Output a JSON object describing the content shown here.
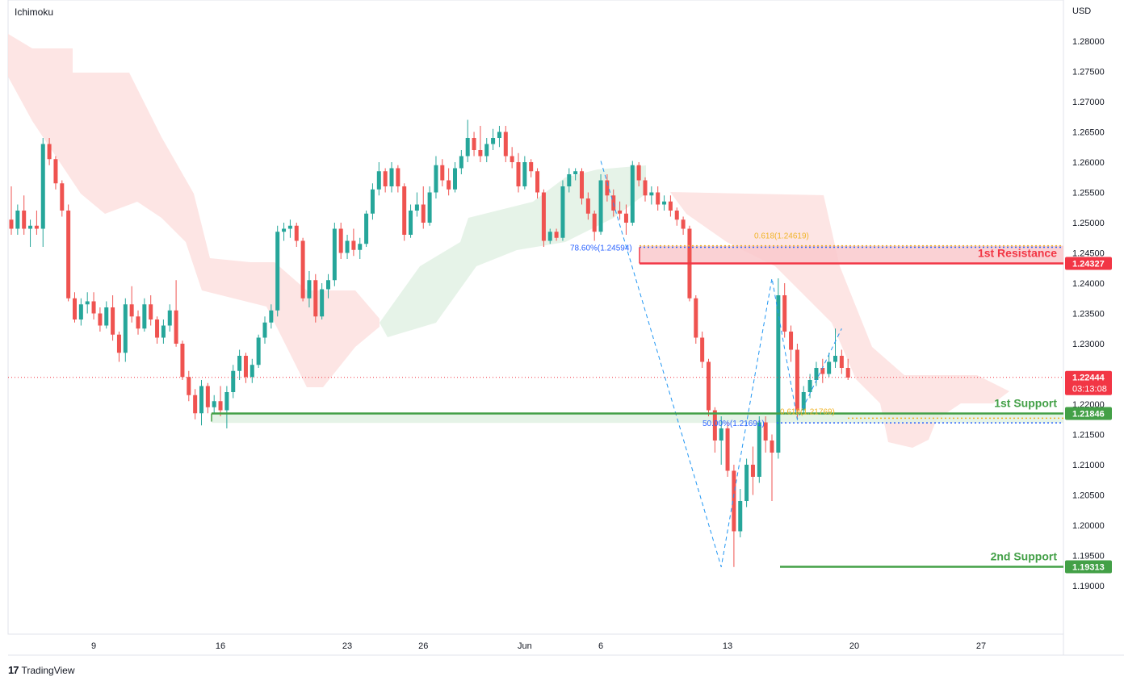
{
  "header": {
    "indicator": "Ichimoku",
    "currency": "USD"
  },
  "footer": {
    "brand": "TradingView"
  },
  "colors": {
    "bull": "#26a69a",
    "bear": "#ef5350",
    "cloud_bear": "#fde0df",
    "cloud_bull": "#e3f2e6",
    "resistance": "#f23645",
    "support": "#43a047",
    "resistance_zone": "#f9c9cd",
    "support_zone": "#dff0e1",
    "fib_blue": "#2962ff",
    "fib_orange": "#f0b429",
    "zigzag": "#2196f3",
    "price_line": "#f23645"
  },
  "chart_data": {
    "type": "candlestick",
    "ylim": [
      1.185,
      1.285
    ],
    "y_ticks": [
      "1.28000",
      "1.27500",
      "1.27000",
      "1.26500",
      "1.26000",
      "1.25500",
      "1.25000",
      "1.24500",
      "1.24000",
      "1.23500",
      "1.23000",
      "1.22500",
      "1.22000",
      "1.21500",
      "1.21000",
      "1.20500",
      "1.20000",
      "1.19500",
      "1.19000"
    ],
    "x_ticks": [
      "9",
      "16",
      "23",
      "26",
      "Jun",
      "6",
      "13",
      "20",
      "27"
    ],
    "last_price": {
      "value": 1.22444,
      "label": "1.22444",
      "countdown": "03:13:08"
    },
    "levels": [
      {
        "name": "1st Resistance",
        "value": 1.24327,
        "label": "1.24327",
        "kind": "resistance"
      },
      {
        "name": "1st Support",
        "value": 1.21846,
        "label": "1.21846",
        "kind": "support"
      },
      {
        "name": "2nd Support",
        "value": 1.19313,
        "label": "1.19313",
        "kind": "support"
      }
    ],
    "fib_labels": [
      {
        "text": "78.60%(1.24594)",
        "value": 1.24594,
        "color": "blue"
      },
      {
        "text": "0.618(1.24619)",
        "value": 1.24619,
        "color": "orange"
      },
      {
        "text": "50.00%(1.21691)",
        "value": 1.21691,
        "color": "blue"
      },
      {
        "text": "0.618(1.21769)",
        "value": 1.21769,
        "color": "orange"
      }
    ],
    "zigzag": [
      {
        "i": 93,
        "price": 1.2602
      },
      {
        "i": 112,
        "price": 1.1931
      },
      {
        "i": 120,
        "price": 1.2408
      },
      {
        "i": 124,
        "price": 1.2175
      },
      {
        "i": 131,
        "price": 1.2325
      }
    ],
    "candles": [
      [
        1.2505,
        1.256,
        1.248,
        1.249
      ],
      [
        1.249,
        1.253,
        1.248,
        1.252
      ],
      [
        1.252,
        1.2545,
        1.248,
        1.249
      ],
      [
        1.249,
        1.2505,
        1.246,
        1.2495
      ],
      [
        1.2495,
        1.252,
        1.248,
        1.249
      ],
      [
        1.249,
        1.264,
        1.246,
        1.263
      ],
      [
        1.263,
        1.264,
        1.2595,
        1.2605
      ],
      [
        1.2605,
        1.261,
        1.2555,
        1.2565
      ],
      [
        1.2565,
        1.257,
        1.251,
        1.252
      ],
      [
        1.252,
        1.253,
        1.237,
        1.2375
      ],
      [
        1.2375,
        1.2385,
        1.2335,
        1.234
      ],
      [
        1.234,
        1.2375,
        1.233,
        1.2365
      ],
      [
        1.2365,
        1.2385,
        1.235,
        1.237
      ],
      [
        1.237,
        1.2385,
        1.234,
        1.235
      ],
      [
        1.235,
        1.236,
        1.232,
        1.233
      ],
      [
        1.233,
        1.237,
        1.2325,
        1.236
      ],
      [
        1.236,
        1.238,
        1.2305,
        1.2315
      ],
      [
        1.2315,
        1.232,
        1.227,
        1.2285
      ],
      [
        1.2285,
        1.2375,
        1.227,
        1.2365
      ],
      [
        1.2365,
        1.2395,
        1.2335,
        1.2345
      ],
      [
        1.2345,
        1.2355,
        1.2315,
        1.2325
      ],
      [
        1.2325,
        1.2375,
        1.232,
        1.2365
      ],
      [
        1.2365,
        1.238,
        1.233,
        1.234
      ],
      [
        1.234,
        1.2345,
        1.23,
        1.231
      ],
      [
        1.231,
        1.234,
        1.23,
        1.233
      ],
      [
        1.233,
        1.2365,
        1.232,
        1.2355
      ],
      [
        1.2355,
        1.2405,
        1.2295,
        1.23
      ],
      [
        1.23,
        1.2305,
        1.224,
        1.2245
      ],
      [
        1.2245,
        1.2255,
        1.2205,
        1.2215
      ],
      [
        1.2215,
        1.2225,
        1.2175,
        1.2185
      ],
      [
        1.2185,
        1.224,
        1.2165,
        1.223
      ],
      [
        1.223,
        1.2235,
        1.2185,
        1.2195
      ],
      [
        1.2195,
        1.2215,
        1.2185,
        1.2205
      ],
      [
        1.2205,
        1.223,
        1.218,
        1.219
      ],
      [
        1.219,
        1.223,
        1.216,
        1.222
      ],
      [
        1.222,
        1.2265,
        1.221,
        1.2255
      ],
      [
        1.2255,
        1.229,
        1.224,
        1.228
      ],
      [
        1.228,
        1.2285,
        1.2235,
        1.2245
      ],
      [
        1.2245,
        1.2275,
        1.2235,
        1.2265
      ],
      [
        1.2265,
        1.2315,
        1.226,
        1.231
      ],
      [
        1.231,
        1.2345,
        1.23,
        1.2335
      ],
      [
        1.2335,
        1.2365,
        1.2325,
        1.2355
      ],
      [
        1.2355,
        1.2495,
        1.2345,
        1.2485
      ],
      [
        1.2485,
        1.25,
        1.247,
        1.249
      ],
      [
        1.249,
        1.2505,
        1.2475,
        1.2495
      ],
      [
        1.2495,
        1.25,
        1.246,
        1.247
      ],
      [
        1.247,
        1.2475,
        1.237,
        1.2375
      ],
      [
        1.2375,
        1.242,
        1.236,
        1.2405
      ],
      [
        1.2405,
        1.2415,
        1.2335,
        1.2345
      ],
      [
        1.2345,
        1.24,
        1.234,
        1.239
      ],
      [
        1.239,
        1.2415,
        1.2375,
        1.2405
      ],
      [
        1.2405,
        1.25,
        1.2395,
        1.249
      ],
      [
        1.249,
        1.25,
        1.244,
        1.245
      ],
      [
        1.245,
        1.248,
        1.244,
        1.247
      ],
      [
        1.247,
        1.249,
        1.2445,
        1.2455
      ],
      [
        1.2455,
        1.2475,
        1.244,
        1.2465
      ],
      [
        1.2465,
        1.252,
        1.246,
        1.2515
      ],
      [
        1.2515,
        1.2565,
        1.2505,
        1.2555
      ],
      [
        1.2555,
        1.26,
        1.2545,
        1.2585
      ],
      [
        1.2585,
        1.259,
        1.255,
        1.256
      ],
      [
        1.256,
        1.26,
        1.255,
        1.259
      ],
      [
        1.259,
        1.2595,
        1.255,
        1.256
      ],
      [
        1.256,
        1.2565,
        1.247,
        1.248
      ],
      [
        1.248,
        1.253,
        1.2475,
        1.252
      ],
      [
        1.252,
        1.255,
        1.251,
        1.253
      ],
      [
        1.253,
        1.256,
        1.249,
        1.25
      ],
      [
        1.25,
        1.256,
        1.2495,
        1.255
      ],
      [
        1.255,
        1.261,
        1.254,
        1.2595
      ],
      [
        1.2595,
        1.2605,
        1.256,
        1.257
      ],
      [
        1.257,
        1.259,
        1.2545,
        1.2555
      ],
      [
        1.2555,
        1.26,
        1.255,
        1.259
      ],
      [
        1.259,
        1.262,
        1.258,
        1.261
      ],
      [
        1.261,
        1.267,
        1.26,
        1.264
      ],
      [
        1.264,
        1.265,
        1.261,
        1.262
      ],
      [
        1.262,
        1.266,
        1.26,
        1.261
      ],
      [
        1.261,
        1.264,
        1.26,
        1.263
      ],
      [
        1.263,
        1.2655,
        1.262,
        1.264
      ],
      [
        1.264,
        1.266,
        1.2625,
        1.265
      ],
      [
        1.265,
        1.266,
        1.26,
        1.261
      ],
      [
        1.261,
        1.2625,
        1.259,
        1.26
      ],
      [
        1.26,
        1.2615,
        1.255,
        1.256
      ],
      [
        1.256,
        1.261,
        1.2555,
        1.26
      ],
      [
        1.26,
        1.2605,
        1.2575,
        1.2585
      ],
      [
        1.2585,
        1.259,
        1.254,
        1.255
      ],
      [
        1.255,
        1.2555,
        1.246,
        1.247
      ],
      [
        1.247,
        1.249,
        1.2465,
        1.2485
      ],
      [
        1.2485,
        1.249,
        1.247,
        1.2475
      ],
      [
        1.2475,
        1.257,
        1.247,
        1.256
      ],
      [
        1.256,
        1.259,
        1.255,
        1.258
      ],
      [
        1.258,
        1.259,
        1.257,
        1.2585
      ],
      [
        1.2585,
        1.259,
        1.253,
        1.254
      ],
      [
        1.254,
        1.255,
        1.2505,
        1.2515
      ],
      [
        1.2515,
        1.252,
        1.247,
        1.2485
      ],
      [
        1.2485,
        1.258,
        1.248,
        1.257
      ],
      [
        1.257,
        1.258,
        1.2535,
        1.2545
      ],
      [
        1.2545,
        1.2555,
        1.251,
        1.252
      ],
      [
        1.252,
        1.2535,
        1.2505,
        1.2515
      ],
      [
        1.2515,
        1.253,
        1.248,
        1.25
      ],
      [
        1.25,
        1.2602,
        1.2495,
        1.2595
      ],
      [
        1.2595,
        1.26,
        1.256,
        1.257
      ],
      [
        1.257,
        1.2575,
        1.2535,
        1.2545
      ],
      [
        1.2545,
        1.256,
        1.253,
        1.255
      ],
      [
        1.255,
        1.256,
        1.252,
        1.253
      ],
      [
        1.253,
        1.2545,
        1.252,
        1.2535
      ],
      [
        1.2535,
        1.2545,
        1.251,
        1.252
      ],
      [
        1.252,
        1.2525,
        1.2495,
        1.2505
      ],
      [
        1.2505,
        1.251,
        1.248,
        1.249
      ],
      [
        1.249,
        1.2495,
        1.237,
        1.2375
      ],
      [
        1.2375,
        1.238,
        1.23,
        1.231
      ],
      [
        1.231,
        1.232,
        1.226,
        1.227
      ],
      [
        1.227,
        1.2275,
        1.218,
        1.219
      ],
      [
        1.219,
        1.2195,
        1.212,
        1.214
      ],
      [
        1.214,
        1.218,
        1.21,
        1.216
      ],
      [
        1.216,
        1.217,
        1.208,
        1.209
      ],
      [
        1.209,
        1.21,
        1.1931,
        1.199
      ],
      [
        1.199,
        1.206,
        1.198,
        1.204
      ],
      [
        1.204,
        1.211,
        1.203,
        1.21
      ],
      [
        1.21,
        1.213,
        1.205,
        1.208
      ],
      [
        1.208,
        1.218,
        1.207,
        1.217
      ],
      [
        1.217,
        1.218,
        1.212,
        1.214
      ],
      [
        1.214,
        1.215,
        1.204,
        1.212
      ],
      [
        1.212,
        1.2408,
        1.211,
        1.238
      ],
      [
        1.238,
        1.24,
        1.231,
        1.232
      ],
      [
        1.232,
        1.233,
        1.227,
        1.229
      ],
      [
        1.229,
        1.23,
        1.2175,
        1.219
      ],
      [
        1.219,
        1.223,
        1.2185,
        1.222
      ],
      [
        1.222,
        1.225,
        1.221,
        1.224
      ],
      [
        1.224,
        1.227,
        1.223,
        1.226
      ],
      [
        1.226,
        1.2275,
        1.2235,
        1.225
      ],
      [
        1.225,
        1.2285,
        1.2245,
        1.227
      ],
      [
        1.227,
        1.2325,
        1.226,
        1.228
      ],
      [
        1.228,
        1.229,
        1.225,
        1.226
      ],
      [
        1.226,
        1.2275,
        1.224,
        1.2244
      ]
    ]
  }
}
